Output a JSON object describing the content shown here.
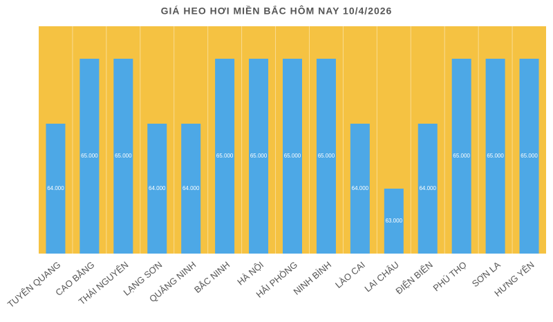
{
  "chart_data": {
    "type": "bar",
    "title": "GIÁ HEO HƠI MIỀN BẮC HÔM NAY 10/4/2026",
    "categories": [
      "TUYÊN QUANG",
      "CAO BẰNG",
      "THÁI NGUYÊN",
      "LẠNG SƠN",
      "QUẢNG NINH",
      "BẮC NINH",
      "HÀ NỘI",
      "HẢI PHÒNG",
      "NINH BÌNH",
      "LÀO CAI",
      "LAI CHÂU",
      "ĐIỆN BIÊN",
      "PHÚ THỌ",
      "SƠN LA",
      "HƯNG YÊN"
    ],
    "values": [
      64000,
      65000,
      65000,
      64000,
      64000,
      65000,
      65000,
      65000,
      65000,
      64000,
      63000,
      64000,
      65000,
      65000,
      65000
    ],
    "value_labels": [
      "64.000",
      "65.000",
      "65.000",
      "64.000",
      "64.000",
      "65.000",
      "65.000",
      "65.000",
      "65.000",
      "64.000",
      "63.000",
      "64.000",
      "65.000",
      "65.000",
      "65.000"
    ],
    "color": "#4da8e6",
    "background": "#f5c242",
    "ylim": [
      62000,
      65500
    ]
  }
}
